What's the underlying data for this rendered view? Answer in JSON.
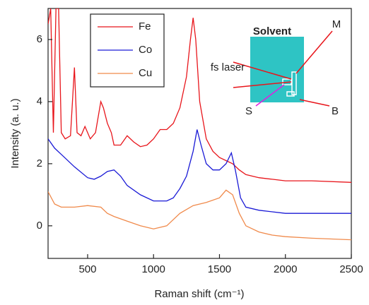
{
  "chart_data": {
    "type": "line",
    "xlabel": "Raman shift (cm⁻¹)",
    "ylabel": "Intensity (a. u.)",
    "xlim": [
      200,
      2500
    ],
    "ylim": [
      -1.05,
      7
    ],
    "xticks": [
      500,
      1000,
      1500,
      2000,
      2500
    ],
    "yticks": [
      0,
      2,
      4,
      6
    ],
    "legend": "upper left",
    "annotations": [
      "Solvent",
      "M",
      "fs laser",
      "S",
      "B"
    ],
    "series": [
      {
        "name": "Fe",
        "color": "#e8151b",
        "x": [
          200,
          220,
          240,
          260,
          280,
          300,
          330,
          370,
          400,
          420,
          450,
          480,
          520,
          560,
          600,
          620,
          650,
          680,
          700,
          750,
          800,
          850,
          900,
          950,
          1000,
          1050,
          1100,
          1150,
          1200,
          1250,
          1280,
          1300,
          1320,
          1350,
          1400,
          1450,
          1500,
          1550,
          1600,
          1650,
          1700,
          1800,
          1900,
          2000,
          2200,
          2500
        ],
        "values": [
          6.5,
          7,
          3.0,
          7,
          7,
          3.0,
          2.8,
          2.9,
          5.1,
          3.0,
          2.9,
          3.2,
          2.8,
          3.0,
          4.0,
          3.8,
          3.3,
          3.0,
          2.6,
          2.6,
          2.9,
          2.7,
          2.55,
          2.6,
          2.8,
          3.1,
          3.1,
          3.3,
          3.8,
          4.8,
          6.0,
          6.7,
          6.0,
          4.0,
          2.8,
          2.4,
          2.2,
          2.1,
          2.0,
          1.8,
          1.65,
          1.55,
          1.5,
          1.45,
          1.45,
          1.4
        ]
      },
      {
        "name": "Co",
        "color": "#1a1ad6",
        "x": [
          200,
          250,
          300,
          400,
          500,
          550,
          600,
          650,
          700,
          750,
          800,
          900,
          1000,
          1100,
          1150,
          1200,
          1250,
          1300,
          1330,
          1360,
          1400,
          1450,
          1500,
          1550,
          1590,
          1620,
          1660,
          1700,
          1800,
          1900,
          2000,
          2200,
          2500
        ],
        "values": [
          2.8,
          2.5,
          2.3,
          1.9,
          1.55,
          1.5,
          1.6,
          1.75,
          1.8,
          1.6,
          1.3,
          1.0,
          0.8,
          0.8,
          0.9,
          1.2,
          1.6,
          2.4,
          3.1,
          2.6,
          2.0,
          1.8,
          1.8,
          2.0,
          2.35,
          1.8,
          0.9,
          0.6,
          0.5,
          0.45,
          0.4,
          0.4,
          0.4
        ]
      },
      {
        "name": "Cu",
        "color": "#f08a4b",
        "x": [
          200,
          250,
          300,
          400,
          500,
          600,
          650,
          700,
          800,
          900,
          1000,
          1100,
          1200,
          1300,
          1400,
          1500,
          1550,
          1600,
          1650,
          1700,
          1800,
          1900,
          2000,
          2200,
          2500
        ],
        "values": [
          1.1,
          0.7,
          0.6,
          0.6,
          0.65,
          0.6,
          0.4,
          0.3,
          0.15,
          0.0,
          -0.1,
          0.0,
          0.4,
          0.65,
          0.75,
          0.9,
          1.15,
          1.0,
          0.4,
          0.0,
          -0.2,
          -0.3,
          -0.35,
          -0.4,
          -0.45
        ]
      }
    ]
  }
}
